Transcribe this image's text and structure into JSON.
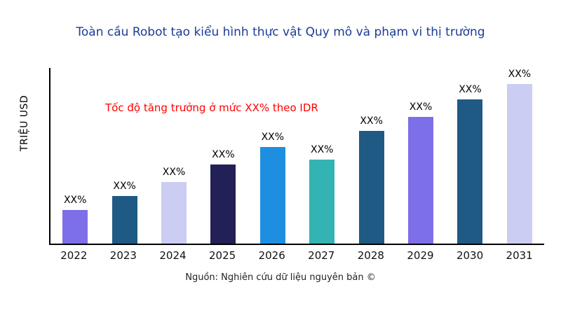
{
  "title": "Toàn cầu Robot tạo kiểu hình thực vật Quy mô và phạm vi thị trường",
  "annotation": "Tốc độ tăng trưởng ở mức XX% theo IDR",
  "ylabel": "TRIỆU USD",
  "source": "Nguồn: Nghiên cứu dữ liệu nguyên bản ©",
  "colors": {
    "title": "#1A3C96",
    "annotation": "#FF0000",
    "axis": "#000000"
  },
  "chart_data": {
    "type": "bar",
    "title": "Toàn cầu Robot tạo kiểu hình thực vật Quy mô và phạm vi thị trường",
    "xlabel": "",
    "ylabel": "TRIỆU USD",
    "categories": [
      "2022",
      "2023",
      "2024",
      "2025",
      "2026",
      "2027",
      "2028",
      "2029",
      "2030",
      "2031"
    ],
    "values": [
      19,
      27,
      35,
      45,
      55,
      48,
      64,
      72,
      82,
      91
    ],
    "values_note": "relative heights in % of plot height; numeric axis values not shown in chart",
    "bar_labels": [
      "XX%",
      "XX%",
      "XX%",
      "XX%",
      "XX%",
      "XX%",
      "XX%",
      "XX%",
      "XX%",
      "XX%"
    ],
    "bar_colors": [
      "#7D6FE8",
      "#1F5A84",
      "#CCCDF2",
      "#232057",
      "#1E8FE0",
      "#33B3B3",
      "#1F5A84",
      "#7D6FE8",
      "#1F5A84",
      "#CCCDF2"
    ],
    "annotation": "Tốc độ tăng trưởng ở mức XX% theo IDR",
    "ylim": [
      0,
      100
    ],
    "grid": false,
    "legend": false
  }
}
